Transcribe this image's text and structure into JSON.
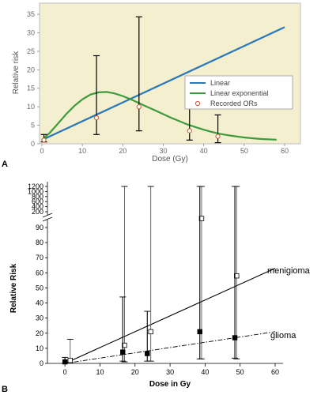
{
  "chart_data": [
    {
      "panel_label": "A",
      "type": "line",
      "xlabel": "Dose (Gy)",
      "ylabel": "Relative risk",
      "xlim": [
        0,
        60
      ],
      "ylim": [
        0,
        38
      ],
      "xticks": [
        "0",
        "10",
        "20",
        "30",
        "40",
        "50",
        "60"
      ],
      "yticks": [
        "0",
        "5",
        "10",
        "15",
        "20",
        "25",
        "30",
        "35"
      ],
      "background_color": "#f3efcf",
      "grid": false,
      "legend_position": "right",
      "series": [
        {
          "name": "Linear",
          "kind": "line",
          "color": "#2a78b8",
          "x": [
            0,
            60
          ],
          "y": [
            1.0,
            31.5
          ]
        },
        {
          "name": "Linear exponential",
          "kind": "line",
          "color": "#3f9a3f",
          "x": [
            0,
            2,
            4,
            6,
            8,
            10,
            12,
            14,
            16,
            18,
            20,
            22,
            24,
            26,
            28,
            30,
            32,
            34,
            36,
            38,
            40,
            42,
            44,
            46,
            48,
            50,
            52,
            54,
            56,
            58
          ],
          "y": [
            1.0,
            3.0,
            5.5,
            8.0,
            10.2,
            12.0,
            13.3,
            13.9,
            14.0,
            13.6,
            12.9,
            12.0,
            11.0,
            10.0,
            9.0,
            8.0,
            7.0,
            6.1,
            5.2,
            4.5,
            3.8,
            3.2,
            2.7,
            2.3,
            2.0,
            1.7,
            1.5,
            1.3,
            1.2,
            1.1
          ]
        },
        {
          "name": "Recorded ORs",
          "kind": "points_with_error",
          "color": "#d4542a",
          "x": [
            0.5,
            13.5,
            24,
            36.5,
            43.5
          ],
          "y": [
            1.0,
            7.0,
            10.0,
            3.5,
            2.0
          ],
          "lo": [
            0.5,
            2.5,
            3.5,
            1.0,
            0.3
          ],
          "hi": [
            2.5,
            23.8,
            34.3,
            14.8,
            7.8
          ]
        }
      ]
    },
    {
      "panel_label": "B",
      "type": "scatter",
      "xlabel": "Dose in Gy",
      "ylabel": "Relative Risk",
      "xlim": [
        -5,
        60
      ],
      "xticks": [
        "0",
        "10",
        "20",
        "30",
        "40",
        "50",
        "60"
      ],
      "ylim": [
        0,
        100
      ],
      "yticks": [
        "0",
        "10",
        "20",
        "30",
        "40",
        "50",
        "60",
        "70",
        "80",
        "90"
      ],
      "upper_ylim": [
        200,
        1200
      ],
      "upper_yticks": [
        "200",
        "400",
        "600",
        "800",
        "1000",
        "1200"
      ],
      "axis_break": true,
      "grid": false,
      "annotations": [
        "menigioma",
        "glioma"
      ],
      "series": [
        {
          "name": "menigioma",
          "kind": "line",
          "style": "solid",
          "x": [
            0,
            60
          ],
          "y": [
            0,
            63
          ]
        },
        {
          "name": "glioma",
          "kind": "line",
          "style": "dashdot",
          "x": [
            0,
            60
          ],
          "y": [
            0,
            21
          ]
        },
        {
          "kind": "open_squares_with_error",
          "x": [
            1.5,
            17,
            24.5,
            39,
            49
          ],
          "y": [
            2.0,
            12.0,
            21.0,
            96.0,
            58.0
          ],
          "lo": [
            0.5,
            1.0,
            1.5,
            3.0,
            3.0
          ],
          "hi": [
            16.0,
            1200,
            1200,
            1200,
            1200
          ]
        },
        {
          "kind": "filled_squares_with_error",
          "x": [
            0,
            16.5,
            23.5,
            38.5,
            48.5
          ],
          "y": [
            1.0,
            7.5,
            6.5,
            21.0,
            17.0
          ],
          "lo": [
            0.2,
            1.5,
            1.5,
            3.0,
            3.5
          ],
          "hi": [
            4.0,
            44.0,
            34.5,
            1200,
            1200
          ]
        }
      ]
    }
  ]
}
